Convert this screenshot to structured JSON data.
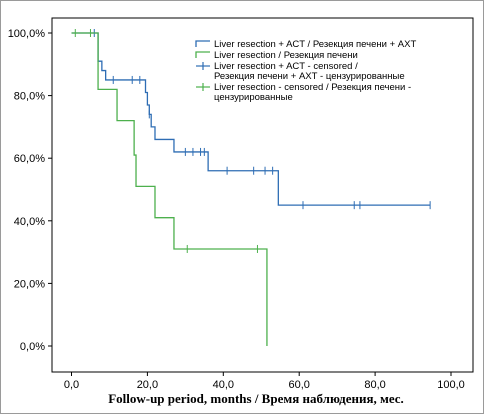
{
  "chart_data": {
    "type": "line",
    "title": "",
    "xlabel": "Follow-up period, months / Время наблюдения, мес.",
    "ylabel": "",
    "xlim": [
      0,
      100
    ],
    "ylim": [
      0,
      100
    ],
    "x_ticks": [
      "0,0",
      "20,0",
      "40,0",
      "60,0",
      "80,0",
      "100,0"
    ],
    "y_ticks": [
      "0,0%",
      "20,0%",
      "40,0%",
      "60,0%",
      "80,0%",
      "100,0%"
    ],
    "grid": false,
    "legend_position": "top-right",
    "legend": [
      {
        "label": [
          "Liver resection + ACT / Резекция печени + АХТ"
        ],
        "kind": "line",
        "color": "#2e6db4"
      },
      {
        "label": [
          "Liver resection / Резекция печени"
        ],
        "kind": "line",
        "color": "#4db04d"
      },
      {
        "label": [
          "Liver resection + ACT - censored /",
          "Резекция печени + АХТ - цензурированные"
        ],
        "kind": "censor",
        "color": "#2e6db4"
      },
      {
        "label": [
          "Liver resection - censored / Резекция печени -",
          "цензурированные"
        ],
        "kind": "censor",
        "color": "#4db04d"
      }
    ],
    "series": [
      {
        "name": "Liver resection + ACT / Резекция печени + АХТ",
        "color": "#2e6db4",
        "steps": [
          [
            0,
            100
          ],
          [
            7,
            91
          ],
          [
            8,
            88
          ],
          [
            9,
            85
          ],
          [
            19.5,
            81
          ],
          [
            20,
            77
          ],
          [
            20.5,
            74
          ],
          [
            21,
            70
          ],
          [
            22,
            66
          ],
          [
            27,
            62
          ],
          [
            36,
            56
          ],
          [
            54.5,
            45
          ],
          [
            94.5,
            45
          ]
        ],
        "censored": [
          [
            6,
            100
          ],
          [
            11,
            85
          ],
          [
            16,
            85
          ],
          [
            18,
            85
          ],
          [
            20.5,
            74
          ],
          [
            30,
            62
          ],
          [
            32,
            62
          ],
          [
            34,
            62
          ],
          [
            35,
            62
          ],
          [
            41,
            56
          ],
          [
            48,
            56
          ],
          [
            51,
            56
          ],
          [
            53,
            56
          ],
          [
            61,
            45
          ],
          [
            74.5,
            45
          ],
          [
            76,
            45
          ],
          [
            94.5,
            45
          ]
        ]
      },
      {
        "name": "Liver resection / Резекция печени",
        "color": "#4db04d",
        "steps": [
          [
            0,
            100
          ],
          [
            7,
            82
          ],
          [
            12,
            72
          ],
          [
            16.5,
            61
          ],
          [
            17,
            51
          ],
          [
            22,
            41
          ],
          [
            27,
            31
          ],
          [
            51.5,
            0
          ]
        ],
        "censored": [
          [
            1,
            100
          ],
          [
            5,
            100
          ],
          [
            30.5,
            31
          ],
          [
            49,
            31
          ]
        ]
      }
    ]
  }
}
